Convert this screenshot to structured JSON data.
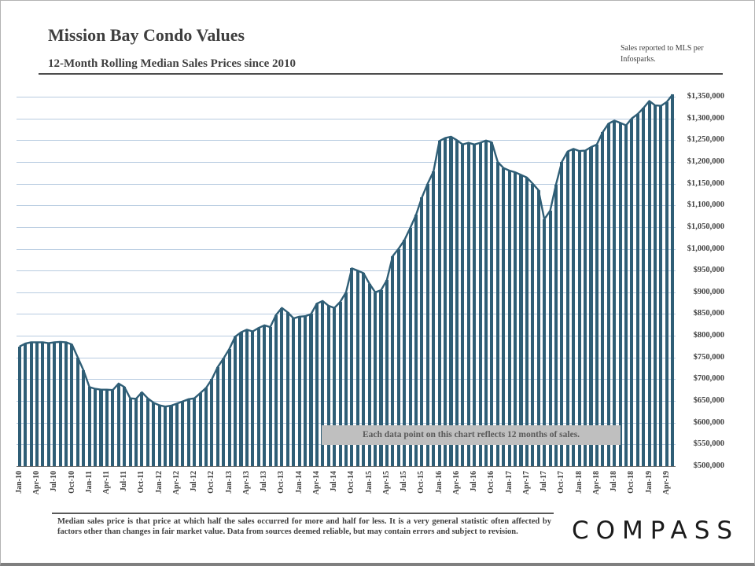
{
  "header": {
    "title": "Mission Bay Condo Values",
    "subtitle": "12-Month Rolling Median Sales Prices since 2010",
    "source_note": "Sales reported to MLS per Infosparks."
  },
  "footnote": "Median sales price is that price at which half the sales occurred for more and half for less. It is a very general statistic often affected by factors other than changes in fair market value. Data from sources deemed reliable, but may contain errors and subject to revision.",
  "logo_text": "COMPASS",
  "chart_data": {
    "type": "bar",
    "title": "Mission Bay Condo Values",
    "subtitle": "12-Month Rolling Median Sales Prices since 2010",
    "x_frequency": "monthly",
    "x_range": "Jan-2010 to May-2019",
    "x_tick_every": 3,
    "x_tick_labels": [
      "Jan-10",
      "Apr-10",
      "Jul-10",
      "Oct-10",
      "Jan-11",
      "Apr-11",
      "Jul-11",
      "Oct-11",
      "Jan-12",
      "Apr-12",
      "Jul-12",
      "Oct-12",
      "Jan-13",
      "Apr-13",
      "Jul-13",
      "Oct-13",
      "Jan-14",
      "Apr-14",
      "Jul-14",
      "Oct-14",
      "Jan-15",
      "Apr-15",
      "Jul-15",
      "Oct-15",
      "Jan-16",
      "Apr-16",
      "Jul-16",
      "Oct-16",
      "Jan-17",
      "Apr-17",
      "Jul-17",
      "Oct-17",
      "Jan-18",
      "Apr-18",
      "Jul-18",
      "Oct-18",
      "Jan-19",
      "Apr-19"
    ],
    "values": [
      775000,
      782000,
      785000,
      785000,
      785000,
      783000,
      785000,
      786000,
      785000,
      780000,
      750000,
      720000,
      682000,
      678000,
      676000,
      676000,
      675000,
      690000,
      682000,
      656000,
      655000,
      670000,
      656000,
      646000,
      640000,
      637000,
      639000,
      644000,
      649000,
      654000,
      656000,
      668000,
      680000,
      700000,
      728000,
      748000,
      770000,
      798000,
      808000,
      814000,
      810000,
      818000,
      824000,
      820000,
      848000,
      864000,
      854000,
      840000,
      844000,
      845000,
      850000,
      874000,
      880000,
      869000,
      864000,
      878000,
      900000,
      955000,
      950000,
      944000,
      920000,
      900000,
      905000,
      928000,
      983000,
      1000000,
      1020000,
      1048000,
      1078000,
      1118000,
      1150000,
      1178000,
      1248000,
      1255000,
      1258000,
      1250000,
      1240000,
      1244000,
      1240000,
      1244000,
      1249000,
      1245000,
      1200000,
      1186000,
      1180000,
      1176000,
      1170000,
      1164000,
      1150000,
      1135000,
      1068000,
      1088000,
      1148000,
      1200000,
      1224000,
      1230000,
      1225000,
      1226000,
      1234000,
      1240000,
      1268000,
      1288000,
      1295000,
      1290000,
      1284000,
      1300000,
      1310000,
      1324000,
      1340000,
      1330000,
      1329000,
      1338000,
      1355000
    ],
    "ylim": [
      500000,
      1350000
    ],
    "ytick_step": 50000,
    "y_tick_labels": [
      "$500,000",
      "$550,000",
      "$600,000",
      "$650,000",
      "$700,000",
      "$750,000",
      "$800,000",
      "$850,000",
      "$900,000",
      "$950,000",
      "$1,000,000",
      "$1,050,000",
      "$1,100,000",
      "$1,150,000",
      "$1,200,000",
      "$1,250,000",
      "$1,300,000",
      "$1,350,000"
    ],
    "annotation": "Each data point on this chart reflects 12 months of sales.",
    "grid": true,
    "legend": "none",
    "bar_color": "#2f5e76",
    "line_color": "#2f5e76",
    "grid_color": "#b7cbe0",
    "axis_line_color": "#6d6d6d",
    "annotation_bg": "#bfbfbf"
  }
}
